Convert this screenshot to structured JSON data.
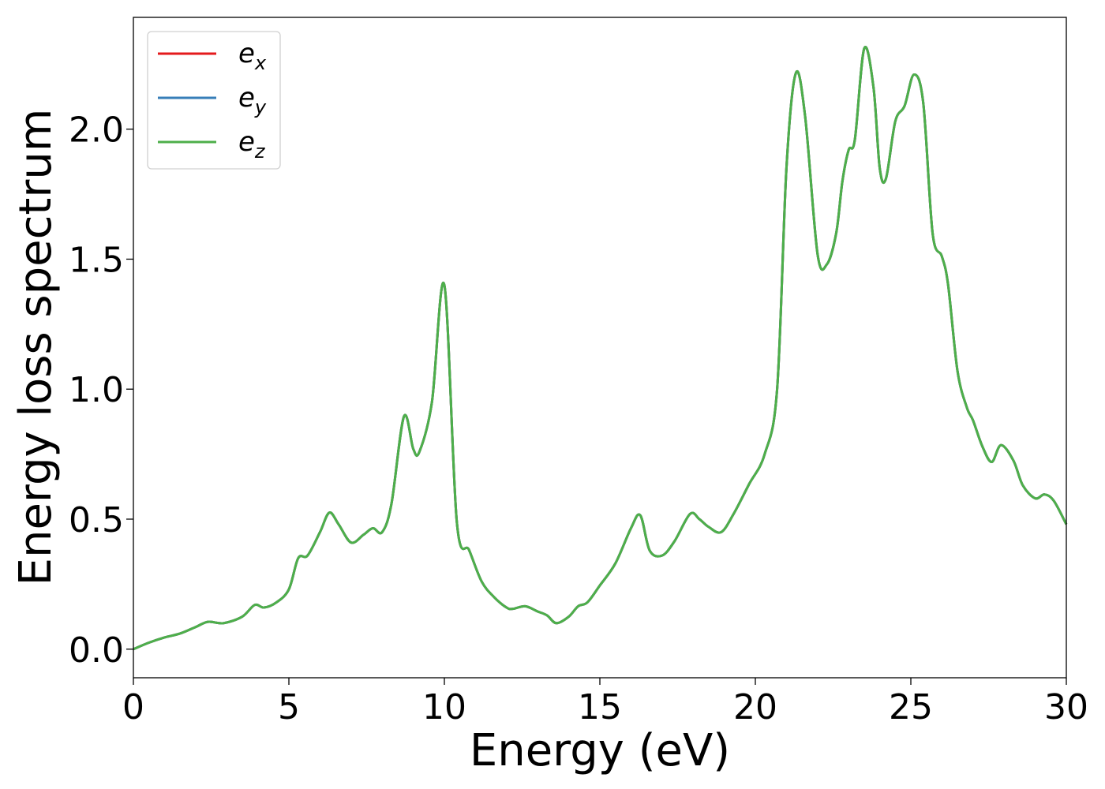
{
  "chart_data": {
    "type": "line",
    "title": "",
    "xlabel": "Energy (eV)",
    "ylabel": "Energy loss spectrum",
    "xlim": [
      0,
      30
    ],
    "ylim": [
      -0.11,
      2.43
    ],
    "xticks": [
      0,
      5,
      10,
      15,
      20,
      25,
      30
    ],
    "xtick_labels": [
      "0",
      "5",
      "10",
      "15",
      "20",
      "25",
      "30"
    ],
    "yticks": [
      0.0,
      0.5,
      1.0,
      1.5,
      2.0
    ],
    "ytick_labels": [
      "0.0",
      "0.5",
      "1.0",
      "1.5",
      "2.0"
    ],
    "grid": false,
    "legend_position": "top-left",
    "x": [
      0,
      0.5,
      1.0,
      1.5,
      2.0,
      2.4,
      2.9,
      3.5,
      3.9,
      4.2,
      4.6,
      5.0,
      5.3,
      5.6,
      6.0,
      6.3,
      6.6,
      7.0,
      7.4,
      7.7,
      8.0,
      8.3,
      8.7,
      9.0,
      9.2,
      9.6,
      10.0,
      10.4,
      10.8,
      11.2,
      11.6,
      12.0,
      12.2,
      12.6,
      13.0,
      13.3,
      13.6,
      14.0,
      14.3,
      14.6,
      15.0,
      15.5,
      16.0,
      16.3,
      16.6,
      17.0,
      17.4,
      17.9,
      18.2,
      18.5,
      18.9,
      19.3,
      19.8,
      20.3,
      20.7,
      21.0,
      21.3,
      21.6,
      22.0,
      22.3,
      22.6,
      22.8,
      23.0,
      23.2,
      23.5,
      23.8,
      24.0,
      24.2,
      24.5,
      24.8,
      25.1,
      25.4,
      25.7,
      26.0,
      26.2,
      26.5,
      26.8,
      27.0,
      27.3,
      27.6,
      27.9,
      28.3,
      28.6,
      29.0,
      29.3,
      29.6,
      30.0
    ],
    "series": [
      {
        "name": "e_x",
        "legend_base": "e",
        "legend_sub": "x",
        "color": "#e41a1c",
        "values": [
          0.0,
          0.025,
          0.045,
          0.06,
          0.085,
          0.105,
          0.1,
          0.125,
          0.17,
          0.16,
          0.18,
          0.23,
          0.35,
          0.36,
          0.45,
          0.525,
          0.48,
          0.41,
          0.44,
          0.465,
          0.45,
          0.56,
          0.895,
          0.77,
          0.76,
          0.95,
          1.4,
          0.49,
          0.38,
          0.26,
          0.2,
          0.16,
          0.155,
          0.165,
          0.145,
          0.13,
          0.1,
          0.125,
          0.165,
          0.18,
          0.245,
          0.33,
          0.465,
          0.515,
          0.38,
          0.36,
          0.415,
          0.52,
          0.5,
          0.47,
          0.45,
          0.52,
          0.635,
          0.75,
          1.0,
          1.85,
          2.215,
          2.05,
          1.52,
          1.48,
          1.6,
          1.8,
          1.92,
          1.96,
          2.31,
          2.16,
          1.85,
          1.81,
          2.03,
          2.09,
          2.21,
          2.1,
          1.6,
          1.51,
          1.4,
          1.07,
          0.93,
          0.88,
          0.78,
          0.72,
          0.785,
          0.725,
          0.63,
          0.58,
          0.595,
          0.57,
          0.48
        ]
      },
      {
        "name": "e_y",
        "legend_base": "e",
        "legend_sub": "y",
        "color": "#377eb8",
        "values": [
          0.0,
          0.025,
          0.045,
          0.06,
          0.085,
          0.105,
          0.1,
          0.125,
          0.17,
          0.16,
          0.18,
          0.23,
          0.35,
          0.36,
          0.45,
          0.525,
          0.48,
          0.41,
          0.44,
          0.465,
          0.45,
          0.56,
          0.895,
          0.77,
          0.76,
          0.95,
          1.4,
          0.49,
          0.38,
          0.26,
          0.2,
          0.16,
          0.155,
          0.165,
          0.145,
          0.13,
          0.1,
          0.125,
          0.165,
          0.18,
          0.245,
          0.33,
          0.465,
          0.515,
          0.38,
          0.36,
          0.415,
          0.52,
          0.5,
          0.47,
          0.45,
          0.52,
          0.635,
          0.75,
          1.0,
          1.85,
          2.215,
          2.05,
          1.52,
          1.48,
          1.6,
          1.8,
          1.92,
          1.96,
          2.31,
          2.16,
          1.85,
          1.81,
          2.03,
          2.09,
          2.21,
          2.1,
          1.6,
          1.51,
          1.4,
          1.07,
          0.93,
          0.88,
          0.78,
          0.72,
          0.785,
          0.725,
          0.63,
          0.58,
          0.595,
          0.57,
          0.48
        ]
      },
      {
        "name": "e_z",
        "legend_base": "e",
        "legend_sub": "z",
        "color": "#4daf4a",
        "values": [
          0.0,
          0.025,
          0.045,
          0.06,
          0.085,
          0.105,
          0.1,
          0.125,
          0.17,
          0.16,
          0.18,
          0.23,
          0.35,
          0.36,
          0.45,
          0.525,
          0.48,
          0.41,
          0.44,
          0.465,
          0.45,
          0.56,
          0.895,
          0.77,
          0.76,
          0.95,
          1.4,
          0.49,
          0.38,
          0.26,
          0.2,
          0.16,
          0.155,
          0.165,
          0.145,
          0.13,
          0.1,
          0.125,
          0.165,
          0.18,
          0.245,
          0.33,
          0.465,
          0.515,
          0.38,
          0.36,
          0.415,
          0.52,
          0.5,
          0.47,
          0.45,
          0.52,
          0.635,
          0.75,
          1.0,
          1.85,
          2.215,
          2.05,
          1.52,
          1.48,
          1.6,
          1.8,
          1.92,
          1.96,
          2.31,
          2.16,
          1.85,
          1.81,
          2.03,
          2.09,
          2.21,
          2.1,
          1.6,
          1.51,
          1.4,
          1.07,
          0.93,
          0.88,
          0.78,
          0.72,
          0.785,
          0.725,
          0.63,
          0.58,
          0.595,
          0.57,
          0.48
        ]
      }
    ]
  }
}
